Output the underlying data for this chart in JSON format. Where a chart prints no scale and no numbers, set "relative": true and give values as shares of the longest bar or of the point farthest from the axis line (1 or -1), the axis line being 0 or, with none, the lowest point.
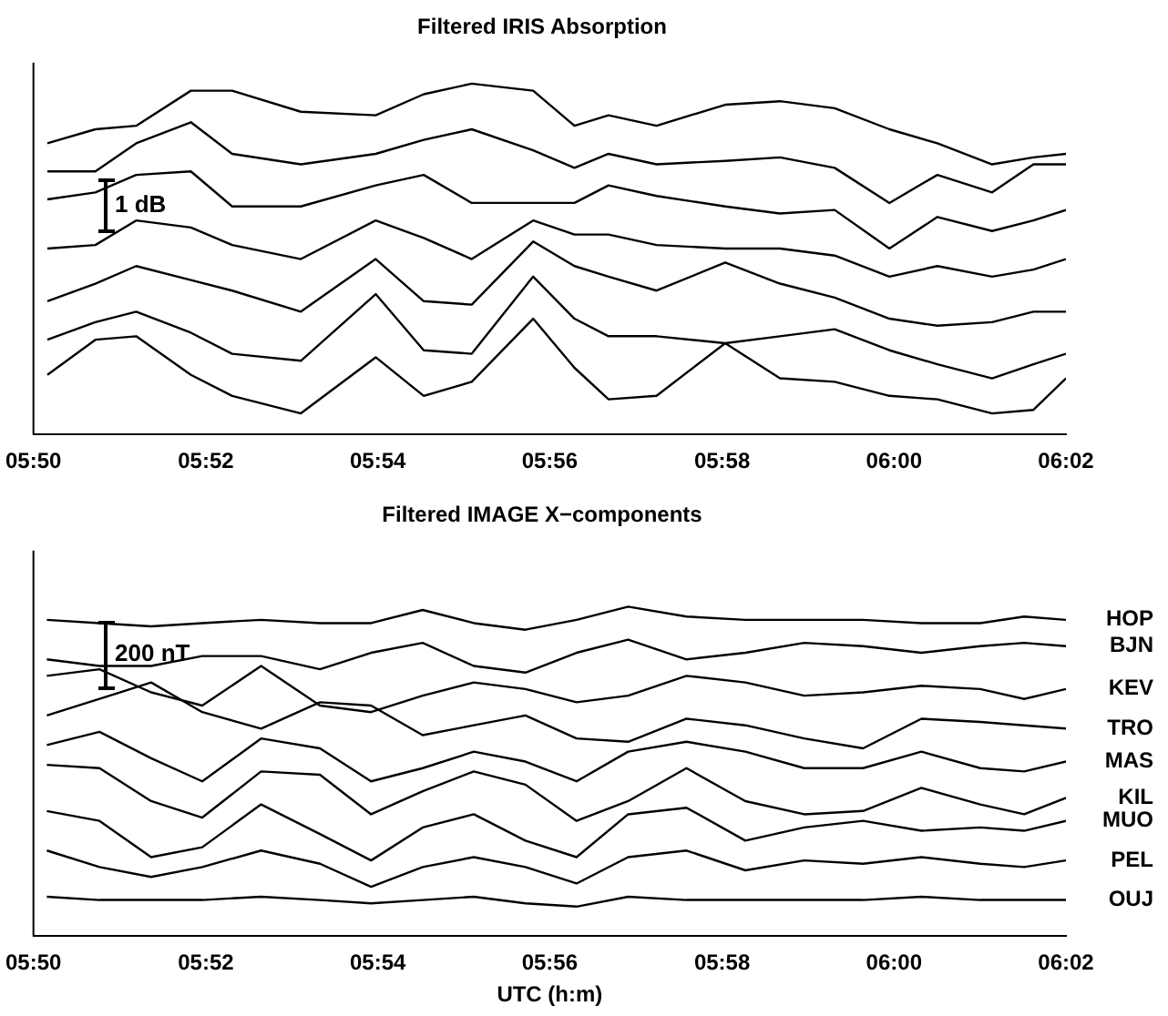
{
  "chart_data": [
    {
      "type": "line",
      "title": "Filtered IRIS Absorption",
      "relative": true,
      "legend": false,
      "marker": "none",
      "annotations": [
        "1 dB"
      ],
      "x": [
        5.836,
        5.8453,
        5.8532,
        5.8638,
        5.8718,
        5.8851,
        5.8996,
        5.9089,
        5.9182,
        5.9301,
        5.9381,
        5.9447,
        5.954,
        5.9673,
        5.9779,
        5.9885,
        5.9991,
        6.0084,
        6.019,
        6.027,
        6.0333
      ],
      "xlim": [
        5.8333,
        6.0333
      ],
      "xticks": [
        {
          "value": 5.8333,
          "label": "05:50"
        },
        {
          "value": 5.8667,
          "label": "05:52"
        },
        {
          "value": 5.9,
          "label": "05:54"
        },
        {
          "value": 5.9333,
          "label": "05:56"
        },
        {
          "value": 5.9667,
          "label": "05:58"
        },
        {
          "value": 6.0,
          "label": "06:00"
        },
        {
          "value": 6.0333,
          "label": "06:02"
        }
      ],
      "series": [
        {
          "color": "#000000",
          "values": [
            0.83,
            0.87,
            0.88,
            0.98,
            0.98,
            0.92,
            0.91,
            0.97,
            1.0,
            0.98,
            0.88,
            0.91,
            0.88,
            0.94,
            0.95,
            0.93,
            0.87,
            0.83,
            0.77,
            0.79,
            0.8
          ]
        },
        {
          "color": "#000000",
          "values": [
            0.75,
            0.75,
            0.83,
            0.89,
            0.8,
            0.77,
            0.8,
            0.84,
            0.87,
            0.81,
            0.76,
            0.8,
            0.77,
            0.78,
            0.79,
            0.76,
            0.66,
            0.74,
            0.69,
            0.77,
            0.77
          ]
        },
        {
          "color": "#000000",
          "values": [
            0.67,
            0.69,
            0.74,
            0.75,
            0.65,
            0.65,
            0.71,
            0.74,
            0.66,
            0.66,
            0.66,
            0.71,
            0.68,
            0.65,
            0.63,
            0.64,
            0.53,
            0.62,
            0.58,
            0.61,
            0.64
          ]
        },
        {
          "color": "#000000",
          "values": [
            0.53,
            0.54,
            0.61,
            0.59,
            0.54,
            0.5,
            0.61,
            0.56,
            0.5,
            0.61,
            0.57,
            0.57,
            0.54,
            0.53,
            0.53,
            0.51,
            0.45,
            0.48,
            0.45,
            0.47,
            0.5
          ]
        },
        {
          "color": "#000000",
          "values": [
            0.38,
            0.43,
            0.48,
            0.44,
            0.41,
            0.35,
            0.5,
            0.38,
            0.37,
            0.55,
            0.48,
            0.45,
            0.41,
            0.49,
            0.43,
            0.39,
            0.33,
            0.31,
            0.32,
            0.35,
            0.35
          ]
        },
        {
          "color": "#000000",
          "values": [
            0.27,
            0.32,
            0.35,
            0.29,
            0.23,
            0.21,
            0.4,
            0.24,
            0.23,
            0.45,
            0.33,
            0.28,
            0.28,
            0.26,
            0.28,
            0.3,
            0.24,
            0.2,
            0.16,
            0.2,
            0.23
          ]
        },
        {
          "color": "#000000",
          "values": [
            0.17,
            0.27,
            0.28,
            0.17,
            0.11,
            0.06,
            0.22,
            0.11,
            0.15,
            0.33,
            0.19,
            0.1,
            0.11,
            0.26,
            0.16,
            0.15,
            0.11,
            0.1,
            0.06,
            0.07,
            0.16
          ]
        }
      ]
    },
    {
      "type": "line",
      "title": "Filtered IMAGE X−components",
      "xlabel": "UTC (h:m)",
      "relative": true,
      "legend": false,
      "marker": "none",
      "annotations": [
        "200 nT"
      ],
      "x": [
        5.8359,
        5.8461,
        5.8561,
        5.866,
        5.8774,
        5.8888,
        5.8987,
        5.9087,
        5.9186,
        5.9286,
        5.9385,
        5.9485,
        5.9598,
        5.9712,
        5.9826,
        5.994,
        6.0053,
        6.0167,
        6.0252,
        6.0333
      ],
      "xlim": [
        5.8333,
        6.0333
      ],
      "xticks": [
        {
          "value": 5.8333,
          "label": "05:50"
        },
        {
          "value": 5.8667,
          "label": "05:52"
        },
        {
          "value": 5.9,
          "label": "05:54"
        },
        {
          "value": 5.9333,
          "label": "05:56"
        },
        {
          "value": 5.9667,
          "label": "05:58"
        },
        {
          "value": 6.0,
          "label": "06:00"
        },
        {
          "value": 6.0333,
          "label": "06:02"
        }
      ],
      "series": [
        {
          "name": "HOP",
          "color": "#000000",
          "values": [
            0.96,
            0.95,
            0.94,
            0.95,
            0.96,
            0.95,
            0.95,
            0.99,
            0.95,
            0.93,
            0.96,
            1.0,
            0.97,
            0.96,
            0.96,
            0.96,
            0.95,
            0.95,
            0.97,
            0.96
          ]
        },
        {
          "name": "BJN",
          "color": "#000000",
          "values": [
            0.84,
            0.82,
            0.82,
            0.85,
            0.85,
            0.81,
            0.86,
            0.89,
            0.82,
            0.8,
            0.86,
            0.9,
            0.84,
            0.86,
            0.89,
            0.88,
            0.86,
            0.88,
            0.89,
            0.88
          ]
        },
        {
          "name": "KEV",
          "color": "#000000",
          "values": [
            0.79,
            0.81,
            0.74,
            0.7,
            0.82,
            0.7,
            0.68,
            0.73,
            0.77,
            0.75,
            0.71,
            0.73,
            0.79,
            0.77,
            0.73,
            0.74,
            0.76,
            0.75,
            0.72,
            0.75
          ]
        },
        {
          "name": "TRO",
          "color": "#000000",
          "values": [
            0.67,
            0.72,
            0.77,
            0.68,
            0.63,
            0.71,
            0.7,
            0.61,
            0.64,
            0.67,
            0.6,
            0.59,
            0.66,
            0.64,
            0.6,
            0.57,
            0.66,
            0.65,
            0.64,
            0.63
          ]
        },
        {
          "name": "MAS",
          "color": "#000000",
          "values": [
            0.58,
            0.62,
            0.54,
            0.47,
            0.6,
            0.57,
            0.47,
            0.51,
            0.56,
            0.53,
            0.47,
            0.56,
            0.59,
            0.56,
            0.51,
            0.51,
            0.56,
            0.51,
            0.5,
            0.53
          ]
        },
        {
          "name": "KIL",
          "color": "#000000",
          "values": [
            0.52,
            0.51,
            0.41,
            0.36,
            0.5,
            0.49,
            0.37,
            0.44,
            0.5,
            0.46,
            0.35,
            0.41,
            0.51,
            0.41,
            0.37,
            0.38,
            0.45,
            0.4,
            0.37,
            0.42
          ]
        },
        {
          "name": "MUO",
          "color": "#000000",
          "values": [
            0.38,
            0.35,
            0.24,
            0.27,
            0.4,
            0.31,
            0.23,
            0.33,
            0.37,
            0.29,
            0.24,
            0.37,
            0.39,
            0.29,
            0.33,
            0.35,
            0.32,
            0.33,
            0.32,
            0.35
          ]
        },
        {
          "name": "PEL",
          "color": "#000000",
          "values": [
            0.26,
            0.21,
            0.18,
            0.21,
            0.26,
            0.22,
            0.15,
            0.21,
            0.24,
            0.21,
            0.16,
            0.24,
            0.26,
            0.2,
            0.23,
            0.22,
            0.24,
            0.22,
            0.21,
            0.23
          ]
        },
        {
          "name": "OUJ",
          "color": "#000000",
          "values": [
            0.12,
            0.11,
            0.11,
            0.11,
            0.12,
            0.11,
            0.1,
            0.11,
            0.12,
            0.1,
            0.09,
            0.12,
            0.11,
            0.11,
            0.11,
            0.11,
            0.12,
            0.11,
            0.11,
            0.11
          ]
        }
      ]
    }
  ]
}
